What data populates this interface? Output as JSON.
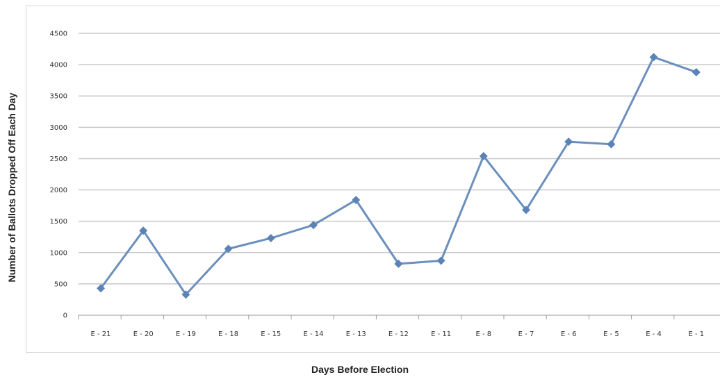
{
  "chart_data": {
    "type": "line",
    "title": "",
    "xlabel": "Days Before Election",
    "ylabel": "Number of Ballots Dropped Off Each Day",
    "categories": [
      "E - 21",
      "E - 20",
      "E - 19",
      "E - 18",
      "E - 15",
      "E - 14",
      "E - 13",
      "E - 12",
      "E - 11",
      "E - 8",
      "E - 7",
      "E - 6",
      "E - 5",
      "E - 4",
      "E - 1"
    ],
    "series": [
      {
        "values": [
          430,
          1350,
          330,
          1060,
          1230,
          1440,
          1840,
          820,
          870,
          2540,
          1680,
          2770,
          2730,
          4120,
          3880
        ]
      }
    ],
    "ylim": [
      0,
      4500
    ],
    "yticks": [
      0,
      500,
      1000,
      1500,
      2000,
      2500,
      3000,
      3500,
      4000,
      4500
    ],
    "grid": true,
    "legend": "none",
    "colors": {
      "line": "#6a8fbd",
      "marker": "#5b83b5",
      "grid": "#c8c8c8",
      "axis": "#9a9a9a"
    }
  }
}
